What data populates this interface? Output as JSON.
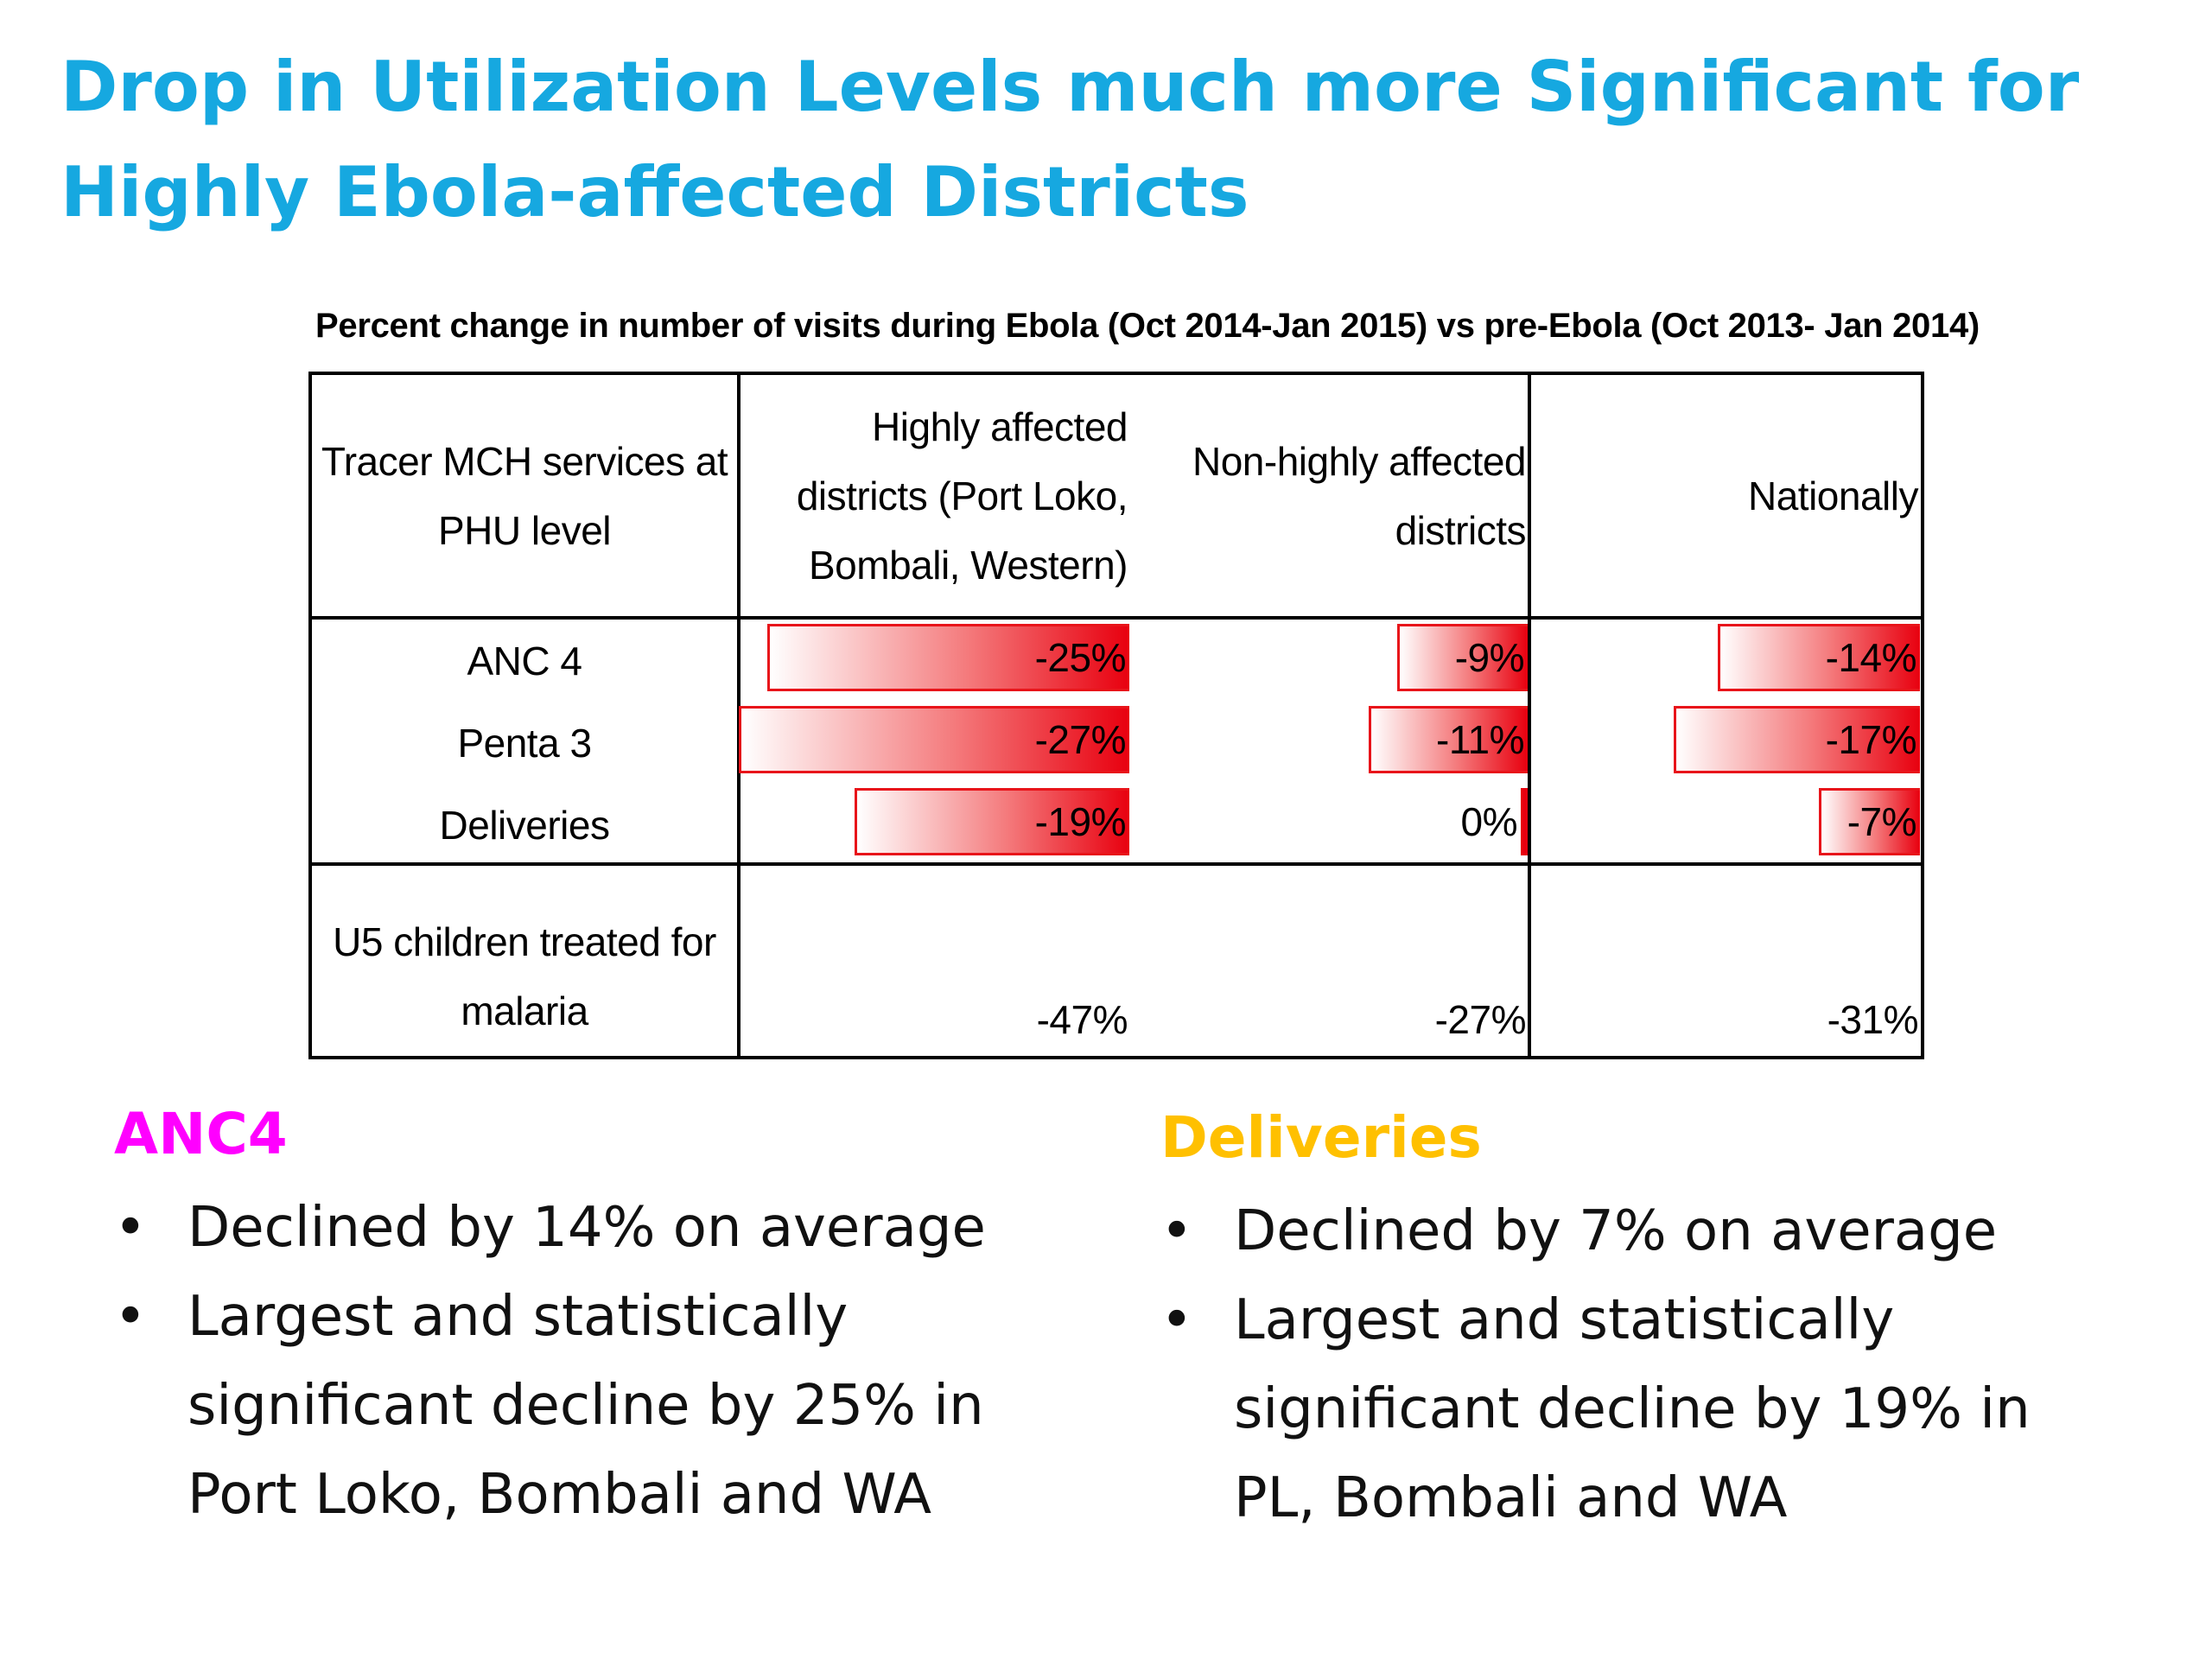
{
  "title_line1": "Drop in Utilization Levels much more Significant for",
  "title_line2": "Highly Ebola-affected Districts",
  "table": {
    "caption": "Percent change in number of visits during Ebola (Oct 2014-Jan 2015) vs pre-Ebola (Oct 2013- Jan 2014)",
    "header_service_lines": [
      "Tracer MCH services at",
      "PHU level"
    ],
    "header_highly_lines": [
      "Highly affected",
      "districts (Port Loko,",
      "Bombali, Western)"
    ],
    "header_nonhighly_lines": [
      "Non-highly affected",
      "districts"
    ],
    "header_national_lines": [
      "Nationally"
    ],
    "rows": [
      {
        "label": "ANC 4",
        "highly": "-25%",
        "nonhighly": "-9%",
        "national": "-14%"
      },
      {
        "label": "Penta 3",
        "highly": "-27%",
        "nonhighly": "-11%",
        "national": "-17%"
      },
      {
        "label": "Deliveries",
        "highly": "-19%",
        "nonhighly": "0%",
        "national": "-7%"
      }
    ],
    "malaria_row": {
      "label_lines": [
        "U5 children treated for",
        "malaria"
      ],
      "highly": "-47%",
      "nonhighly": "-27%",
      "national": "-31%"
    },
    "bar_color": "#e8000f"
  },
  "chart_data": {
    "type": "bar",
    "categories": [
      "ANC 4",
      "Penta 3",
      "Deliveries"
    ],
    "series": [
      {
        "name": "Highly affected districts (Port Loko, Bombali, Western)",
        "values": [
          -25,
          -27,
          -19
        ]
      },
      {
        "name": "Non-highly affected districts",
        "values": [
          -9,
          -11,
          0
        ]
      },
      {
        "name": "Nationally",
        "values": [
          -14,
          -17,
          -7
        ]
      }
    ]
  },
  "anc4": {
    "heading": "ANC4",
    "color": "#ff00ff",
    "bullets": [
      [
        "Declined by 14% on average"
      ],
      [
        "Largest and statistically",
        "significant decline by 25% in",
        "Port Loko, Bombali and WA"
      ]
    ]
  },
  "deliveries": {
    "heading": "Deliveries",
    "color": "#ffc000",
    "bullets": [
      [
        "Declined by 7% on average"
      ],
      [
        "Largest and statistically",
        "significant decline by 19% in",
        "PL, Bombali and WA"
      ]
    ]
  },
  "bullet_glyph": "•"
}
